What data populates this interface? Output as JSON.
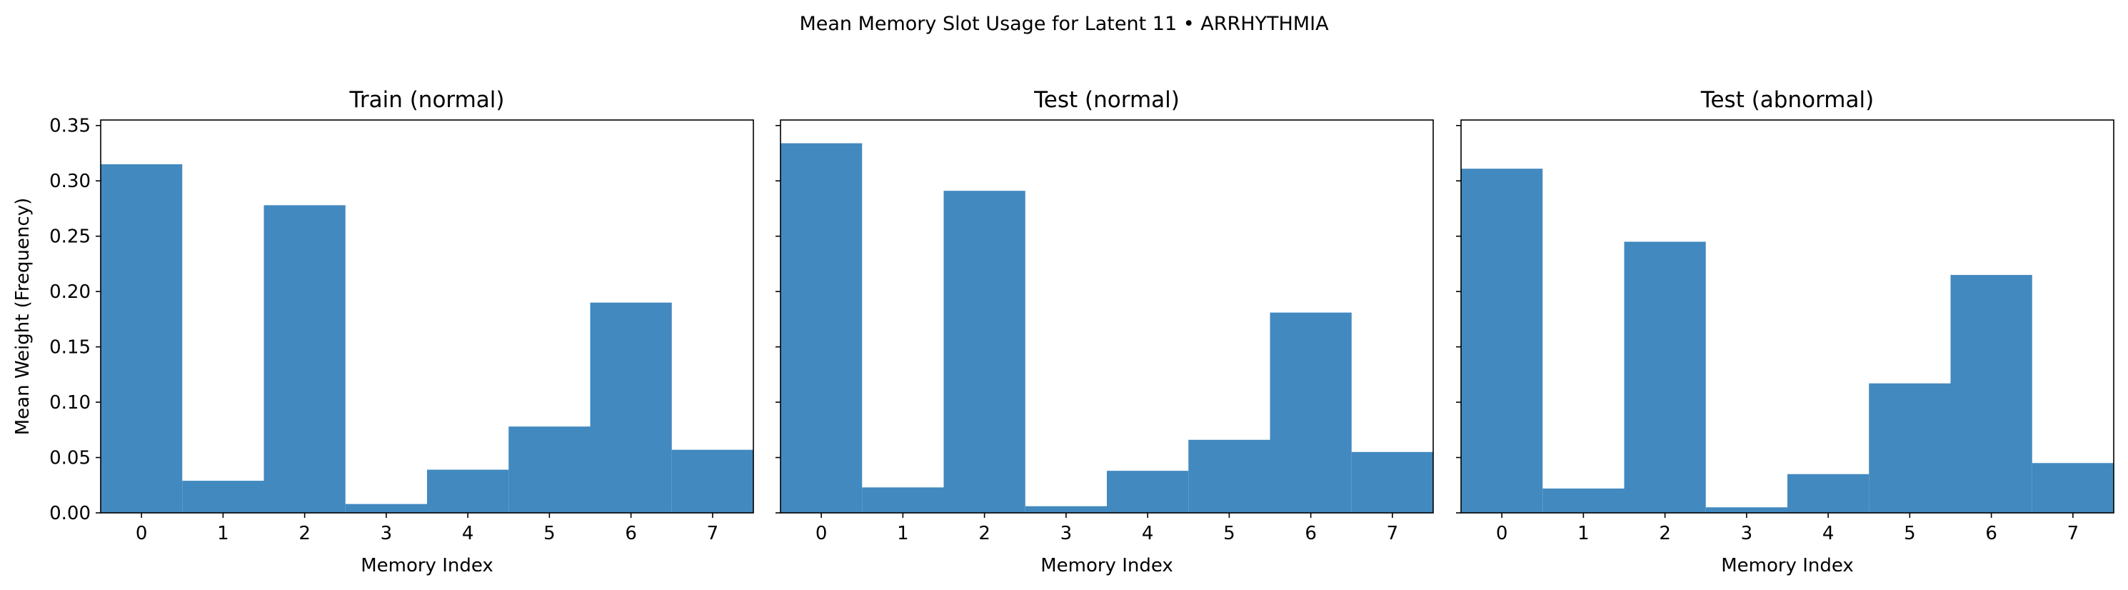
{
  "figure": {
    "suptitle": "Mean Memory Slot Usage for Latent 11 • ARRHYTHMIA",
    "shared_y": true
  },
  "chart_data": [
    {
      "type": "bar",
      "title": "Train (normal)",
      "xlabel": "Memory Index",
      "ylabel": "Mean Weight (Frequency)",
      "categories": [
        "0",
        "1",
        "2",
        "3",
        "4",
        "5",
        "6",
        "7"
      ],
      "values": [
        0.315,
        0.029,
        0.278,
        0.008,
        0.039,
        0.078,
        0.19,
        0.057
      ],
      "ylim": [
        0,
        0.355
      ],
      "yticks": [
        "0.00",
        "0.05",
        "0.10",
        "0.15",
        "0.20",
        "0.25",
        "0.30",
        "0.35"
      ],
      "color": "#4289bf"
    },
    {
      "type": "bar",
      "title": "Test (normal)",
      "xlabel": "Memory Index",
      "ylabel": "",
      "categories": [
        "0",
        "1",
        "2",
        "3",
        "4",
        "5",
        "6",
        "7"
      ],
      "values": [
        0.334,
        0.023,
        0.291,
        0.006,
        0.038,
        0.066,
        0.181,
        0.055
      ],
      "ylim": [
        0,
        0.355
      ],
      "yticks": [],
      "color": "#4289bf"
    },
    {
      "type": "bar",
      "title": "Test (abnormal)",
      "xlabel": "Memory Index",
      "ylabel": "",
      "categories": [
        "0",
        "1",
        "2",
        "3",
        "4",
        "5",
        "6",
        "7"
      ],
      "values": [
        0.311,
        0.022,
        0.245,
        0.005,
        0.035,
        0.117,
        0.215,
        0.045
      ],
      "ylim": [
        0,
        0.355
      ],
      "yticks": [],
      "color": "#4289bf"
    }
  ]
}
